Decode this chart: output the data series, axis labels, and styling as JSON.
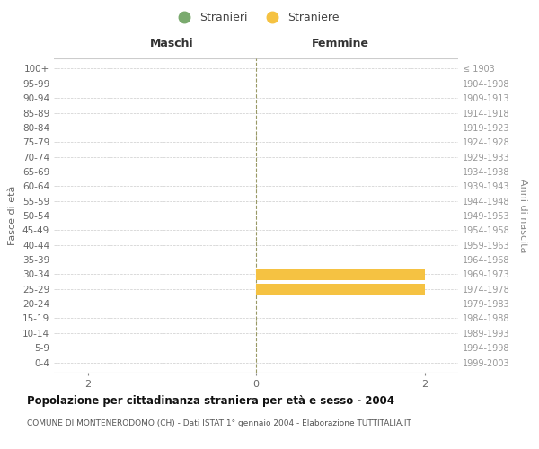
{
  "age_groups": [
    "100+",
    "95-99",
    "90-94",
    "85-89",
    "80-84",
    "75-79",
    "70-74",
    "65-69",
    "60-64",
    "55-59",
    "50-54",
    "45-49",
    "40-44",
    "35-39",
    "30-34",
    "25-29",
    "20-24",
    "15-19",
    "10-14",
    "5-9",
    "0-4"
  ],
  "birth_years": [
    "≤ 1903",
    "1904-1908",
    "1909-1913",
    "1914-1918",
    "1919-1923",
    "1924-1928",
    "1929-1933",
    "1934-1938",
    "1939-1943",
    "1944-1948",
    "1949-1953",
    "1954-1958",
    "1959-1963",
    "1964-1968",
    "1969-1973",
    "1974-1978",
    "1979-1983",
    "1984-1988",
    "1989-1993",
    "1994-1998",
    "1999-2003"
  ],
  "males": [
    0,
    0,
    0,
    0,
    0,
    0,
    0,
    0,
    0,
    0,
    0,
    0,
    0,
    0,
    0,
    0,
    0,
    0,
    0,
    0,
    0
  ],
  "females": [
    0,
    0,
    0,
    0,
    0,
    0,
    0,
    0,
    0,
    0,
    0,
    0,
    0,
    0,
    2,
    2,
    0,
    0,
    0,
    0,
    0
  ],
  "xlim": [
    -2.4,
    2.4
  ],
  "xtick_vals": [
    -2,
    0,
    2
  ],
  "male_color": "#7aaa6e",
  "female_color": "#f5c242",
  "male_label": "Stranieri",
  "female_label": "Straniere",
  "maschi_label": "Maschi",
  "femmine_label": "Femmine",
  "ylabel_left": "Fasce di età",
  "ylabel_right": "Anni di nascita",
  "title": "Popolazione per cittadinanza straniera per età e sesso - 2004",
  "subtitle": "COMUNE DI MONTENERODOMO (CH) - Dati ISTAT 1° gennaio 2004 - Elaborazione TUTTITALIA.IT",
  "bg_color": "#ffffff",
  "grid_color": "#cccccc",
  "bar_height": 0.75
}
